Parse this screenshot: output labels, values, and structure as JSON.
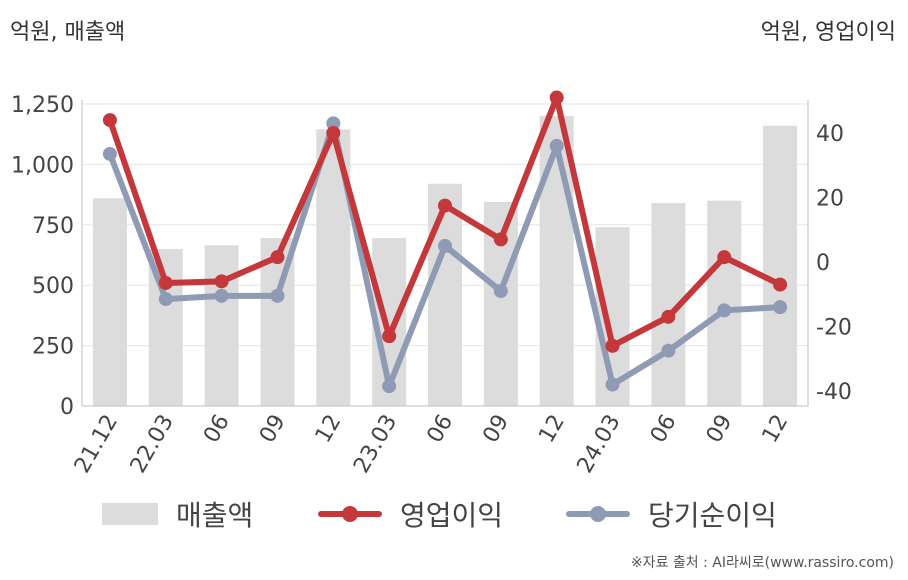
{
  "units": {
    "left": "억원, 매출액",
    "right": "억원, 영업이익"
  },
  "source": "※자료 출처 : AI라씨로(www.rassiro.com)",
  "colors": {
    "revenue": "#dcdcdc",
    "operating": "#c4373a",
    "net": "#8f9bb5",
    "grid": "#e6e6e6",
    "axis": "#bfbfbf"
  },
  "chart_data": {
    "type": "bar+line",
    "categories": [
      "21.12",
      "22.03",
      "06",
      "09",
      "12",
      "23.03",
      "06",
      "09",
      "12",
      "24.03",
      "06",
      "09",
      "12"
    ],
    "left_axis": {
      "unit": "억원, 매출액",
      "ylim": [
        0,
        1250
      ],
      "ticks": [
        0,
        250,
        500,
        750,
        1000,
        1250
      ],
      "tick_labels": [
        "0",
        "250",
        "500",
        "750",
        "1,000",
        "1,250"
      ]
    },
    "right_axis": {
      "unit": "억원, 영업이익",
      "ylim": [
        -45,
        50
      ],
      "ticks": [
        -40,
        -20,
        0,
        20,
        40
      ],
      "tick_labels": [
        "-40",
        "-20",
        "0",
        "20",
        "40"
      ]
    },
    "series": [
      {
        "name": "매출액",
        "type": "bar",
        "axis": "left",
        "values": [
          860,
          650,
          665,
          695,
          1145,
          695,
          920,
          845,
          1200,
          740,
          840,
          850,
          1160
        ]
      },
      {
        "name": "영업이익",
        "type": "line",
        "axis": "right",
        "values": [
          44,
          -6.5,
          -6,
          1.5,
          40,
          -23,
          17.5,
          7,
          51,
          -26,
          -17,
          1.5,
          -7
        ]
      },
      {
        "name": "당기순이익",
        "type": "line",
        "axis": "right",
        "values": [
          33.5,
          -11.5,
          -10.5,
          -10.5,
          43,
          -38.5,
          5,
          -9,
          36,
          -38,
          -27.5,
          -15,
          -14
        ]
      }
    ],
    "grid": true,
    "legend": "bottom"
  }
}
